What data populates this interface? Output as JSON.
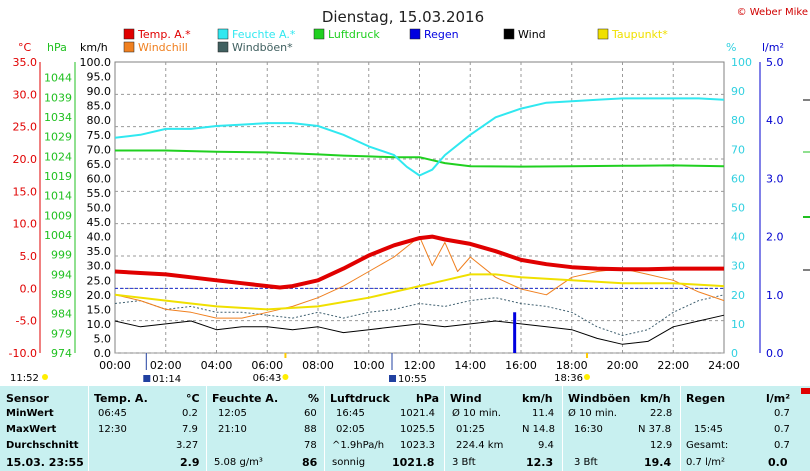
{
  "title": "Dienstag, 15.03.2016",
  "copyright": "© Weber Mike",
  "legend": [
    {
      "label": "Temp. A.*",
      "color": "#e00000"
    },
    {
      "label": "Feuchte A.*",
      "color": "#30e8f0"
    },
    {
      "label": "Luftdruck",
      "color": "#20d020"
    },
    {
      "label": "Regen",
      "color": "#0000e0"
    },
    {
      "label": "Wind",
      "color": "#000000"
    },
    {
      "label": "Taupunkt*",
      "color": "#f0e000"
    },
    {
      "label": "Windchill",
      "color": "#f08020"
    },
    {
      "label": "Windböen*",
      "color": "#406060"
    }
  ],
  "axis_units": {
    "temp": "°C",
    "press": "hPa",
    "wind": "km/h",
    "hum": "%",
    "rain": "l/m²"
  },
  "sun_events": {
    "left_time": "11:52",
    "sunrise": "01:14",
    "morning": "06:43",
    "noon": "10:55",
    "sunset": "18:36"
  },
  "chart_data": {
    "type": "line",
    "x_unit": "time of day",
    "xlim": [
      "00:00",
      "24:00"
    ],
    "x_ticks": [
      "00:00",
      "02:00",
      "04:00",
      "06:00",
      "08:00",
      "10:00",
      "12:00",
      "14:00",
      "16:00",
      "18:00",
      "20:00",
      "22:00",
      "24:00"
    ],
    "axes": {
      "temp": {
        "label": "°C",
        "lim": [
          -10,
          35
        ],
        "ticks": [
          "35.0",
          "30.0",
          "25.0",
          "20.0",
          "15.0",
          "10.0",
          "5.0",
          "0.0",
          "-5.0",
          "-10.0"
        ]
      },
      "press": {
        "label": "hPa",
        "lim": [
          974,
          1048
        ],
        "ticks": [
          "1044",
          "1039",
          "1034",
          "1029",
          "1024",
          "1019",
          "1014",
          "1009",
          "1004",
          "999",
          "994",
          "989",
          "984",
          "979",
          "974"
        ]
      },
      "wind": {
        "label": "km/h",
        "lim": [
          0,
          100
        ],
        "ticks": [
          "100.0",
          "95.0",
          "90.0",
          "85.0",
          "80.0",
          "75.0",
          "70.0",
          "65.0",
          "60.0",
          "55.0",
          "50.0",
          "45.0",
          "40.0",
          "35.0",
          "30.0",
          "25.0",
          "20.0",
          "15.0",
          "10.0",
          "5.0",
          "0.0"
        ]
      },
      "hum": {
        "label": "%",
        "lim": [
          0,
          100
        ],
        "ticks": [
          "100",
          "90",
          "80",
          "70",
          "60",
          "50",
          "40",
          "30",
          "20",
          "10",
          "0"
        ]
      },
      "rain": {
        "label": "l/m²",
        "lim": [
          0,
          5
        ],
        "ticks": [
          "5.0",
          "4.0",
          "3.0",
          "2.0",
          "1.0",
          "0.0"
        ]
      }
    },
    "series": [
      {
        "name": "Temp. A.*",
        "axis": "wind",
        "x": [
          0,
          1,
          2,
          3,
          4,
          5,
          6,
          6.5,
          7,
          8,
          9,
          10,
          11,
          12,
          12.5,
          13,
          14,
          15,
          16,
          17,
          18,
          19,
          20,
          21,
          22,
          23,
          24
        ],
        "y": [
          28,
          27.5,
          27,
          26,
          25,
          24,
          23,
          22.5,
          23,
          25,
          29,
          33.5,
          37,
          39.5,
          40,
          39,
          37.5,
          35,
          32,
          30.5,
          29.5,
          29,
          28.8,
          28.8,
          29,
          29,
          29
        ]
      },
      {
        "name": "Feuchte A.*",
        "axis": "hum",
        "x": [
          0,
          1,
          2,
          3,
          4,
          5,
          6,
          7,
          8,
          9,
          10,
          11,
          11.5,
          12,
          12.5,
          13,
          14,
          15,
          16,
          17,
          18,
          19,
          20,
          21,
          22,
          23,
          24
        ],
        "y": [
          74,
          75,
          77,
          77,
          78,
          78.5,
          79,
          79,
          78,
          75,
          71,
          68,
          64,
          61,
          63,
          68,
          75,
          81,
          84,
          86,
          86.5,
          87,
          87.5,
          87.5,
          87.5,
          87.5,
          87
        ]
      },
      {
        "name": "Luftdruck",
        "axis": "press",
        "x": [
          0,
          2,
          4,
          6,
          8,
          9,
          10,
          11,
          12,
          13,
          14,
          16,
          18,
          20,
          22,
          24
        ],
        "y": [
          1025.5,
          1025.5,
          1025.2,
          1025.0,
          1024.5,
          1024.2,
          1024.0,
          1023.8,
          1023.8,
          1022.3,
          1021.5,
          1021.4,
          1021.5,
          1021.6,
          1021.7,
          1021.5
        ]
      },
      {
        "name": "Regen",
        "axis": "rain",
        "x": [
          15.75
        ],
        "y": [
          0.7
        ]
      },
      {
        "name": "Wind",
        "axis": "wind",
        "x": [
          0,
          1,
          2,
          3,
          4,
          5,
          6,
          7,
          8,
          9,
          10,
          11,
          12,
          13,
          14,
          15,
          16,
          17,
          18,
          19,
          20,
          21,
          22,
          23,
          24
        ],
        "y": [
          11,
          9,
          10,
          11,
          8,
          9,
          9,
          8,
          9,
          7,
          8,
          9,
          10,
          9,
          10,
          11,
          10,
          9,
          8,
          5,
          3,
          4,
          9,
          11,
          13
        ]
      },
      {
        "name": "Taupunkt*",
        "axis": "wind",
        "x": [
          0,
          2,
          4,
          6,
          8,
          10,
          12,
          13,
          14,
          15,
          16,
          18,
          20,
          22,
          24
        ],
        "y": [
          20,
          18,
          16,
          15,
          16,
          19,
          23,
          25,
          27,
          27,
          26,
          25,
          24,
          24,
          23
        ]
      },
      {
        "name": "Windchill",
        "axis": "wind",
        "x": [
          0,
          1,
          2,
          3,
          4,
          5,
          6,
          7,
          8,
          9,
          10,
          11,
          12,
          12.5,
          13,
          13.5,
          14,
          15,
          16,
          17,
          18,
          19,
          20,
          21,
          22,
          23,
          24
        ],
        "y": [
          20,
          18,
          15,
          14,
          12,
          12,
          14,
          16,
          19,
          23,
          28,
          33,
          40,
          30,
          38,
          28,
          33,
          26,
          22,
          20,
          26,
          28,
          29,
          27,
          25,
          21,
          18
        ]
      },
      {
        "name": "Windböen*",
        "axis": "wind",
        "x": [
          0,
          1,
          2,
          3,
          4,
          5,
          6,
          7,
          8,
          9,
          10,
          11,
          12,
          13,
          14,
          15,
          16,
          17,
          18,
          19,
          20,
          21,
          22,
          23,
          24
        ],
        "y": [
          17,
          18,
          15,
          16,
          14,
          14,
          13,
          12,
          14,
          12,
          14,
          15,
          17,
          16,
          18,
          19,
          17,
          16,
          14,
          9,
          6,
          8,
          14,
          18,
          20
        ]
      }
    ]
  },
  "table": {
    "sensor": {
      "header": "Sensor",
      "rows": [
        "MinWert",
        "MaxWert",
        "Durchschnitt",
        "15.03. 23:55"
      ]
    },
    "temp": {
      "header": "Temp. A.",
      "unit": "°C",
      "min_time": "06:45",
      "min": "0.2",
      "max_time": "12:30",
      "max": "7.9",
      "avg": "3.27",
      "cur": "2.9"
    },
    "hum": {
      "header": "Feuchte A.",
      "unit": "%",
      "min_time": "12:05",
      "min": "60",
      "max_time": "21:10",
      "max": "88",
      "avg": "78",
      "extra": "5.08 g/m³",
      "cur": "86"
    },
    "press": {
      "header": "Luftdruck",
      "unit": "hPa",
      "min_time": "16:45",
      "min": "1021.4",
      "max_time": "02:05",
      "max": "1025.5",
      "avg_label": "^1.9hPa/h",
      "avg": "1023.3",
      "extra": "sonnig",
      "cur": "1021.8"
    },
    "wind": {
      "header": "Wind",
      "unit": "km/h",
      "min_label": "Ø 10 min.",
      "min": "11.4",
      "max_time": "01:25",
      "max": "N 14.8",
      "avg_label": "224.4 km",
      "avg": "9.4",
      "extra": "3 Bft",
      "cur": "12.3"
    },
    "gust": {
      "header": "Windböen",
      "unit": "km/h",
      "min_label": "Ø 10 min.",
      "min": "22.8",
      "max_time": "16:30",
      "max": "N 37.8",
      "avg": "12.9",
      "extra": "3 Bft",
      "cur": "19.4"
    },
    "rain": {
      "header": "Regen",
      "unit": "l/m²",
      "min": "0.7",
      "max_time": "15:45",
      "max": "0.7",
      "avg_label": "Gesamt:",
      "avg": "0.7",
      "extra": "0.7 l/m²",
      "cur": "0.0"
    }
  }
}
